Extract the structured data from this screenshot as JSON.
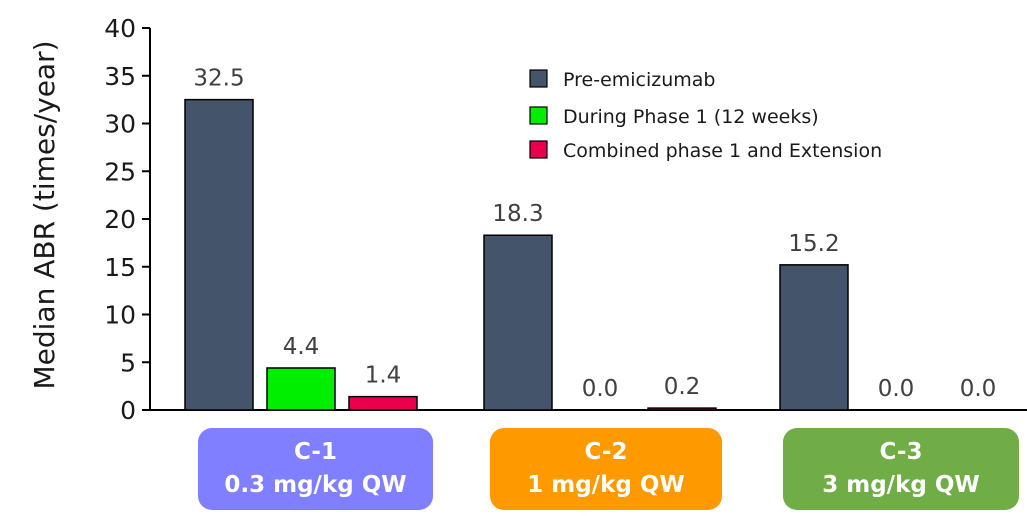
{
  "chart_data": {
    "type": "bar",
    "title": "",
    "xlabel": "",
    "ylabel": "Median ABR (times/year)",
    "ylim": [
      0,
      40
    ],
    "yticks": [
      0,
      5,
      10,
      15,
      20,
      25,
      30,
      35,
      40
    ],
    "categories": [
      "C-1",
      "C-2",
      "C-3"
    ],
    "series": [
      {
        "name": "Pre-emicizumab",
        "color": "#44546a",
        "values": [
          32.5,
          18.3,
          15.2
        ],
        "labels": [
          "32.5",
          "18.3",
          "15.2"
        ]
      },
      {
        "name": "During Phase 1 (12 weeks)",
        "color": "#00ee00",
        "values": [
          4.4,
          0.0,
          0.0
        ],
        "labels": [
          "4.4",
          "0.0",
          "0.0"
        ]
      },
      {
        "name": "Combined phase 1 and Extension",
        "color": "#e8004f",
        "values": [
          1.4,
          0.2,
          0.0
        ],
        "labels": [
          "1.4",
          "0.2",
          "0.0"
        ]
      }
    ],
    "legend_position": "top-right",
    "grid": false
  },
  "groups": [
    {
      "code": "C-1",
      "dose": "0.3 mg/kg QW",
      "color": "#7f7fff"
    },
    {
      "code": "C-2",
      "dose": "1 mg/kg QW",
      "color": "#ff9900"
    },
    {
      "code": "C-3",
      "dose": "3 mg/kg QW",
      "color": "#70ad47"
    }
  ]
}
